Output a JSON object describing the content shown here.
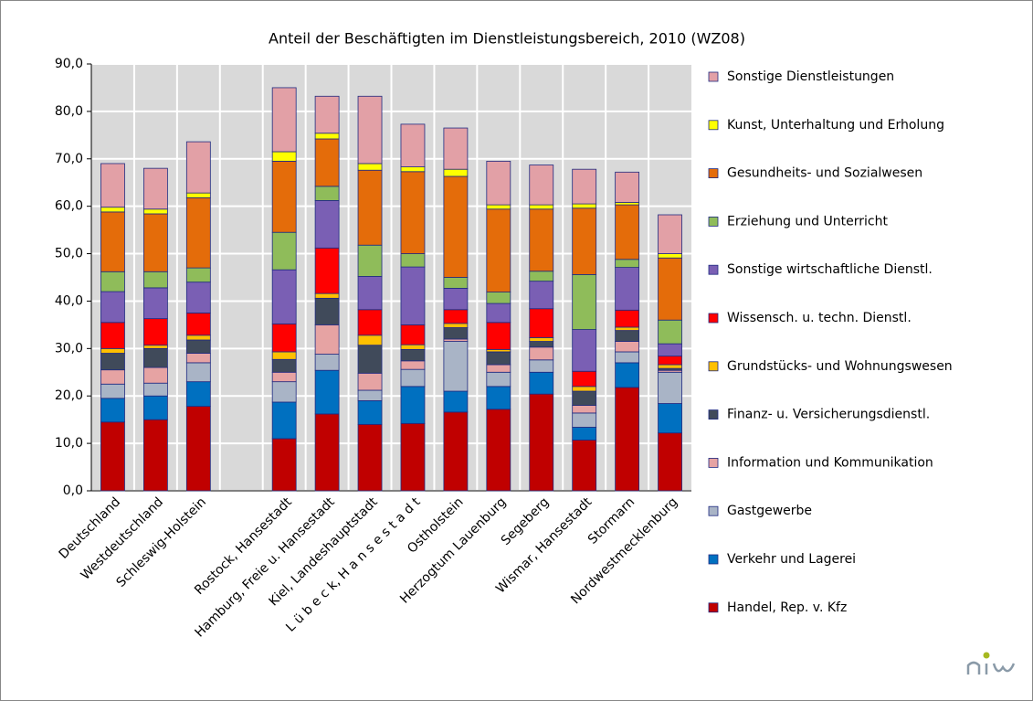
{
  "chart_data": {
    "type": "stacked_bar",
    "title": "Anteil der Beschäftigten im Dienstleistungsbereich, 2010 (WZ08)",
    "categories": [
      "Deutschland",
      "Westdeutschland",
      "Schleswig-Holstein",
      null,
      "Rostock, Hansestadt",
      "Hamburg, Freie u. Hansestadt",
      "Kiel, Landeshauptstadt",
      "L ü b e c k, H a n s e s t a d t",
      "Ostholstein",
      "Herzogtum Lauenburg",
      "Segeberg",
      "Wismar, Hansestadt",
      "Stormarn",
      "Nordwestmecklenburg"
    ],
    "series": [
      {
        "name": "Handel, Rep. v. Kfz",
        "color": "#c00000",
        "values": [
          14.5,
          15.0,
          17.8,
          null,
          11.0,
          16.2,
          14.0,
          14.2,
          16.6,
          17.2,
          20.4,
          10.7,
          21.8,
          12.2
        ]
      },
      {
        "name": "Verkehr und Lagerei",
        "color": "#0070c0",
        "values": [
          5.0,
          5.0,
          5.2,
          null,
          7.7,
          9.2,
          5.0,
          7.8,
          4.4,
          4.8,
          4.6,
          2.7,
          5.2,
          6.2
        ]
      },
      {
        "name": "Gastgewerbe",
        "color": "#a9b4c6",
        "values": [
          3.0,
          2.7,
          4.0,
          null,
          4.3,
          3.4,
          2.2,
          3.6,
          10.5,
          3.0,
          2.6,
          3.0,
          2.3,
          6.6
        ]
      },
      {
        "name": "Information und Kommunikation",
        "color": "#e6a3a3",
        "values": [
          3.0,
          3.3,
          2.0,
          null,
          2.0,
          6.2,
          3.6,
          1.8,
          0.5,
          1.6,
          2.7,
          1.6,
          2.2,
          0.4
        ]
      },
      {
        "name": "Finanz- u. Versicherungsdienstl.",
        "color": "#404a5a",
        "values": [
          3.5,
          4.0,
          2.8,
          null,
          2.7,
          5.6,
          5.9,
          2.4,
          2.4,
          2.7,
          1.2,
          3.0,
          2.3,
          0.4
        ]
      },
      {
        "name": "Grundstücks- und Wohnungswesen",
        "color": "#ffc000",
        "values": [
          1.0,
          0.7,
          1.0,
          null,
          1.6,
          1.0,
          2.1,
          1.0,
          0.9,
          0.5,
          0.8,
          1.0,
          0.7,
          0.8
        ]
      },
      {
        "name": "Wissensch. u. techn. Dienstl.",
        "color": "#ff0000",
        "values": [
          5.5,
          5.6,
          4.7,
          null,
          5.9,
          9.6,
          5.4,
          4.2,
          2.9,
          5.7,
          6.1,
          3.2,
          3.6,
          1.8
        ]
      },
      {
        "name": "Sonstige wirtschaftliche Dienstl.",
        "color": "#7a5fb4",
        "values": [
          6.5,
          6.5,
          6.5,
          null,
          11.4,
          10.0,
          7.0,
          12.2,
          4.5,
          4.0,
          5.8,
          8.8,
          9.0,
          2.6
        ]
      },
      {
        "name": "Erziehung und Unterricht",
        "color": "#8fbc5a",
        "values": [
          4.2,
          3.4,
          3.0,
          null,
          7.9,
          3.0,
          6.6,
          2.8,
          2.3,
          2.4,
          2.1,
          11.6,
          1.7,
          5.0
        ]
      },
      {
        "name": "Gesundheits- und Sozialwesen",
        "color": "#e46c0a",
        "values": [
          12.6,
          12.2,
          14.8,
          null,
          15.0,
          10.0,
          15.8,
          17.3,
          21.3,
          17.5,
          13.1,
          14.0,
          11.5,
          13.1
        ]
      },
      {
        "name": "Kunst, Unterhaltung und Erholung",
        "color": "#ffff00",
        "values": [
          1.0,
          1.0,
          1.0,
          null,
          2.0,
          1.2,
          1.4,
          1.0,
          1.5,
          0.9,
          0.9,
          0.9,
          0.5,
          0.9
        ]
      },
      {
        "name": "Sonstige Dienstleistungen",
        "color": "#e2a0a6",
        "values": [
          9.2,
          8.6,
          10.8,
          null,
          13.5,
          7.8,
          14.2,
          9.0,
          8.7,
          9.2,
          8.4,
          7.3,
          6.4,
          8.2
        ]
      }
    ],
    "ylim": [
      0,
      90
    ],
    "yticks": [
      {
        "value": 0,
        "label": "0,0"
      },
      {
        "value": 10,
        "label": "10,0"
      },
      {
        "value": 20,
        "label": "20,0"
      },
      {
        "value": 30,
        "label": "30,0"
      },
      {
        "value": 40,
        "label": "40,0"
      },
      {
        "value": 50,
        "label": "50,0"
      },
      {
        "value": 60,
        "label": "60,0"
      },
      {
        "value": 70,
        "label": "70,0"
      },
      {
        "value": 80,
        "label": "80,0"
      },
      {
        "value": 90,
        "label": "90,0"
      }
    ],
    "grid": true,
    "legend": "right"
  }
}
